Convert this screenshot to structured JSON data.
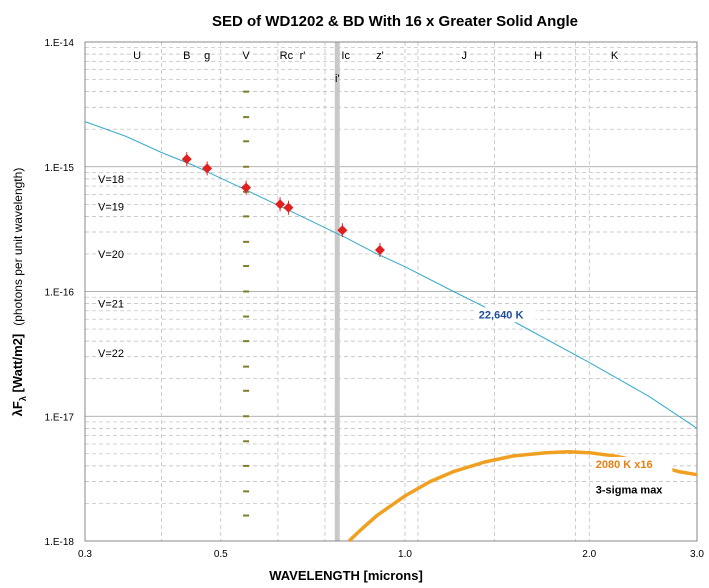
{
  "chart_data": {
    "type": "line",
    "title": "SED of WD1202 & BD With 16 x Greater Solid Angle",
    "xlabel": "WAVELENGTH [microns]",
    "ylabel_main": "λF",
    "ylabel_sub": "λ",
    "ylabel_rest": " [Watt/m2]",
    "ylabel_note": "(photons per unit wavelength)",
    "x_scale": "log",
    "y_scale": "log",
    "xlim": [
      0.3,
      3.0
    ],
    "ylim": [
      1e-18,
      1e-14
    ],
    "x_ticks": [
      {
        "value": 0.3,
        "label": "0.3"
      },
      {
        "value": 0.5,
        "label": "0.5"
      },
      {
        "value": 1.0,
        "label": "1.0"
      },
      {
        "value": 2.0,
        "label": "2.0"
      },
      {
        "value": 3.0,
        "label": "3.0"
      }
    ],
    "y_ticks": [
      {
        "value": 1e-14,
        "label": "1.E-14"
      },
      {
        "value": 1e-15,
        "label": "1.E-15"
      },
      {
        "value": 1e-16,
        "label": "1.E-16"
      },
      {
        "value": 1e-17,
        "label": "1.E-17"
      },
      {
        "value": 1e-18,
        "label": "1.E-18"
      }
    ],
    "grid": true,
    "bands": [
      {
        "label": "U",
        "x": 0.365
      },
      {
        "label": "B",
        "x": 0.44
      },
      {
        "label": "g",
        "x": 0.475
      },
      {
        "label": "V",
        "x": 0.55
      },
      {
        "label": "Rc",
        "x": 0.64
      },
      {
        "label": "r'",
        "x": 0.68
      },
      {
        "label": "Ic",
        "x": 0.8
      },
      {
        "label": "z'",
        "x": 0.91
      },
      {
        "label": "J",
        "x": 1.25
      },
      {
        "label": "H",
        "x": 1.65
      },
      {
        "label": "K",
        "x": 2.2
      }
    ],
    "i_prime": {
      "label": "i'",
      "x": 0.775
    },
    "band_lines_x": [
      0.4,
      0.62,
      0.74,
      1.05,
      1.4,
      1.9
    ],
    "vmag_labels": [
      {
        "label": "V=18",
        "y": 8e-16
      },
      {
        "label": "V=19",
        "y": 4.8e-16
      },
      {
        "label": "V=20",
        "y": 2e-16
      },
      {
        "label": "V=21",
        "y": 8e-17
      },
      {
        "label": "V=22",
        "y": 3.2e-17
      }
    ],
    "vmag_ticks": {
      "x": 0.55,
      "y_values": [
        4e-15,
        2.5e-15,
        1.6e-15,
        1e-15,
        6.3e-16,
        4e-16,
        2.5e-16,
        1.6e-16,
        1e-16,
        6.3e-17,
        4e-17,
        2.5e-17,
        1.6e-17,
        1e-17,
        6.3e-18,
        4e-18,
        2.5e-18,
        1.6e-18
      ]
    },
    "series": [
      {
        "name": "22,640 K",
        "color": "#33a9cc",
        "x": [
          0.3,
          0.35,
          0.4,
          0.45,
          0.5,
          0.55,
          0.6,
          0.65,
          0.7,
          0.8,
          0.9,
          1.0,
          1.2,
          1.5,
          2.0,
          2.5,
          3.0
        ],
        "values": [
          2.3e-15,
          1.75e-15,
          1.3e-15,
          1.03e-15,
          8.1e-16,
          6.5e-16,
          5.3e-16,
          4.4e-16,
          3.7e-16,
          2.7e-16,
          2e-16,
          1.58e-16,
          1e-16,
          5.8e-17,
          2.7e-17,
          1.45e-17,
          8e-18
        ]
      },
      {
        "name": "2080 K  x16",
        "color": "#f0a020",
        "x": [
          0.81,
          0.85,
          0.9,
          1.0,
          1.1,
          1.2,
          1.35,
          1.5,
          1.7,
          1.85,
          2.0,
          2.2,
          2.5,
          2.8,
          3.0
        ],
        "values": [
          1e-18,
          1.25e-18,
          1.6e-18,
          2.3e-18,
          3e-18,
          3.6e-18,
          4.3e-18,
          4.8e-18,
          5.1e-18,
          5.2e-18,
          5.1e-18,
          4.8e-18,
          4.2e-18,
          3.6e-18,
          3.4e-18
        ]
      }
    ],
    "observations": {
      "color": "#e02020",
      "x": [
        0.44,
        0.475,
        0.55,
        0.625,
        0.645,
        0.79,
        0.91
      ],
      "values": [
        1.15e-15,
        9.7e-16,
        6.8e-16,
        5e-16,
        4.7e-16,
        3.1e-16,
        2.15e-16
      ]
    },
    "annotations": [
      {
        "text": "22,640 K",
        "color": "#1f4e9a",
        "x": 1.32,
        "y": 6.1e-17
      },
      {
        "text": "2080 K  x16",
        "color": "#e87f10",
        "x": 2.05,
        "y": 3.85e-18
      },
      {
        "text": "3-sigma max",
        "color": "#000000",
        "x": 2.05,
        "y": 2.4e-18
      }
    ]
  }
}
